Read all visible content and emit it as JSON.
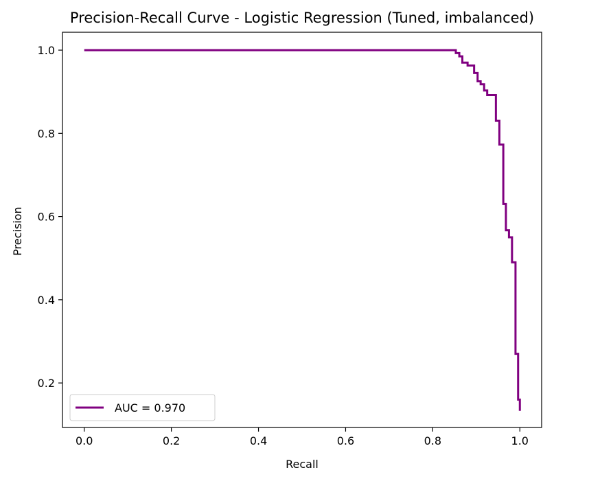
{
  "chart_data": {
    "type": "line",
    "title": "Precision-Recall Curve - Logistic Regression (Tuned, imbalanced)",
    "xlabel": "Recall",
    "ylabel": "Precision",
    "xlim": [
      -0.05,
      1.05
    ],
    "ylim": [
      0.093,
      1.043
    ],
    "xticks": [
      0.0,
      0.2,
      0.4,
      0.6,
      0.8,
      1.0
    ],
    "xtick_labels": [
      "0.0",
      "0.2",
      "0.4",
      "0.6",
      "0.8",
      "1.0"
    ],
    "yticks": [
      0.2,
      0.4,
      0.6,
      0.8,
      1.0
    ],
    "ytick_labels": [
      "0.2",
      "0.4",
      "0.6",
      "0.8",
      "1.0"
    ],
    "grid": false,
    "legend_position": "lower-left",
    "series": [
      {
        "name": "AUC = 0.970",
        "color": "#800080",
        "step": true,
        "recall": [
          0.0,
          0.853,
          0.861,
          0.868,
          0.88,
          0.895,
          0.903,
          0.91,
          0.918,
          0.925,
          0.945,
          0.953,
          0.962,
          0.968,
          0.975,
          0.982,
          0.99,
          0.996,
          1.0
        ],
        "precision": [
          1.0,
          0.993,
          0.985,
          0.97,
          0.963,
          0.945,
          0.925,
          0.918,
          0.903,
          0.892,
          0.83,
          0.773,
          0.63,
          0.567,
          0.55,
          0.49,
          0.27,
          0.16,
          0.133
        ]
      }
    ]
  }
}
